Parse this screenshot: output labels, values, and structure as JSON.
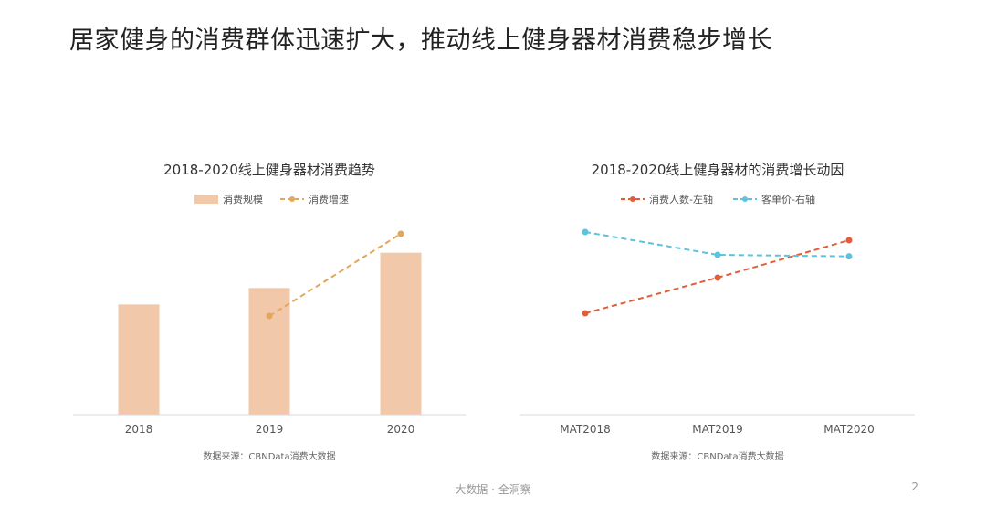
{
  "page": {
    "title": "居家健身的消费群体迅速扩大，推动线上健身器材消费稳步增长",
    "footer": "大数据 · 全洞察",
    "page_number": "2"
  },
  "colors": {
    "bar": "#F1C9AA",
    "growth_line": "#E3A75B",
    "people_line": "#E25E3A",
    "price_line": "#5BC3DD",
    "axis": "#D9D9D9"
  },
  "chart_data": [
    {
      "type": "bar",
      "title": "2018-2020线上健身器材消费趋势",
      "categories": [
        "2018",
        "2019",
        "2020"
      ],
      "series": [
        {
          "name": "消费规模",
          "type": "bar",
          "values": [
            100,
            115,
            147
          ]
        },
        {
          "name": "消费增速",
          "type": "line",
          "values": [
            null,
            15,
            28
          ]
        }
      ],
      "yaxis_visible": false,
      "grid": false,
      "legend_position": "top-center",
      "source": "数据来源：CBNData消费大数据"
    },
    {
      "type": "line",
      "title": "2018-2020线上健身器材的消费增长动因",
      "categories": [
        "MAT2018",
        "MAT2019",
        "MAT2020"
      ],
      "series": [
        {
          "name": "消费人数-左轴",
          "axis": "left",
          "values": [
            100,
            141,
            184
          ]
        },
        {
          "name": "客单价-右轴",
          "axis": "right",
          "values": [
            100,
            85,
            84
          ]
        }
      ],
      "yaxis_visible": false,
      "grid": false,
      "legend_position": "top-center",
      "source": "数据来源：CBNData消费大数据"
    }
  ]
}
